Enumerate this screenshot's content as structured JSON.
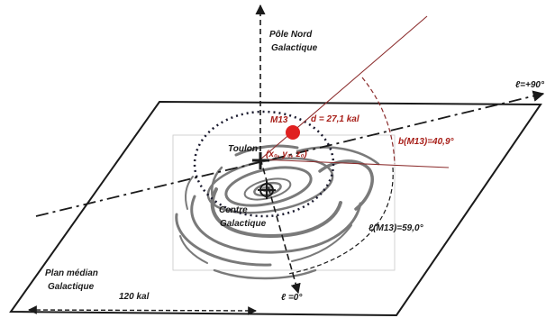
{
  "labels": {
    "pole_line1": "Pôle Nord",
    "pole_line2": "Galactique",
    "l_90": "ℓ=+90°",
    "l_0": "ℓ =0°",
    "m13": "M13",
    "distance": "d = 27,1 kal",
    "b_m13": "b(M13)=40,9°",
    "l_m13": "ℓ(M13)=59,0°",
    "toulon": "Toulon",
    "coords": "(x₀, y₀, z₀)",
    "centre_line1": "Centre",
    "centre_line2": "Galactique",
    "plan_line1": "Plan médian",
    "plan_line2": "Galactique",
    "scale": "120 kal"
  },
  "colors": {
    "ink": "#1a1a1a",
    "annotation_red": "#a8201a",
    "m13_dot": "#e02020",
    "arc_line": "#8b2c2c",
    "galaxy_gray": "#7a7a7a"
  }
}
